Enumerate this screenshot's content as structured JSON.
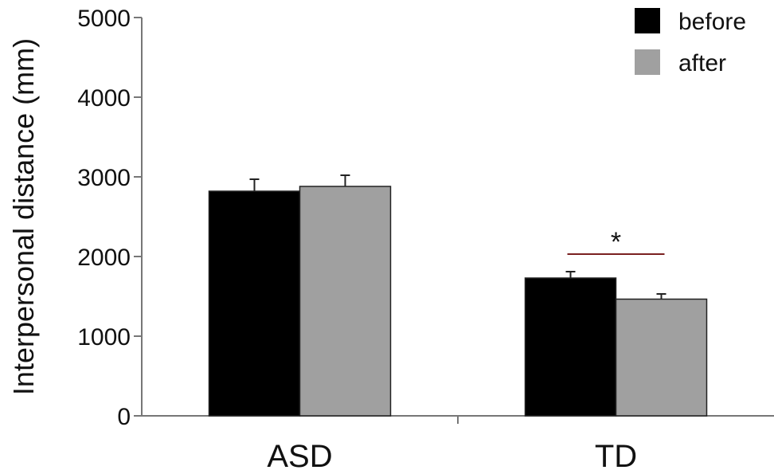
{
  "chart_data": {
    "type": "bar",
    "categories": [
      "ASD",
      "TD"
    ],
    "series": [
      {
        "name": "before",
        "color": "#000000",
        "values": [
          2820,
          1730
        ],
        "errors": [
          150,
          80
        ]
      },
      {
        "name": "after",
        "color": "#a0a0a0",
        "values": [
          2880,
          1465
        ],
        "errors": [
          140,
          65
        ]
      }
    ],
    "ylabel": "Interpersonal distance (mm)",
    "ylim": [
      0,
      5000
    ],
    "yticks": [
      0,
      1000,
      2000,
      3000,
      4000,
      5000
    ],
    "grid": false,
    "legend_position": "top-right",
    "annotations": [
      {
        "text": "*",
        "category": "TD",
        "type": "significance",
        "line_color": "#7a2020"
      }
    ]
  }
}
